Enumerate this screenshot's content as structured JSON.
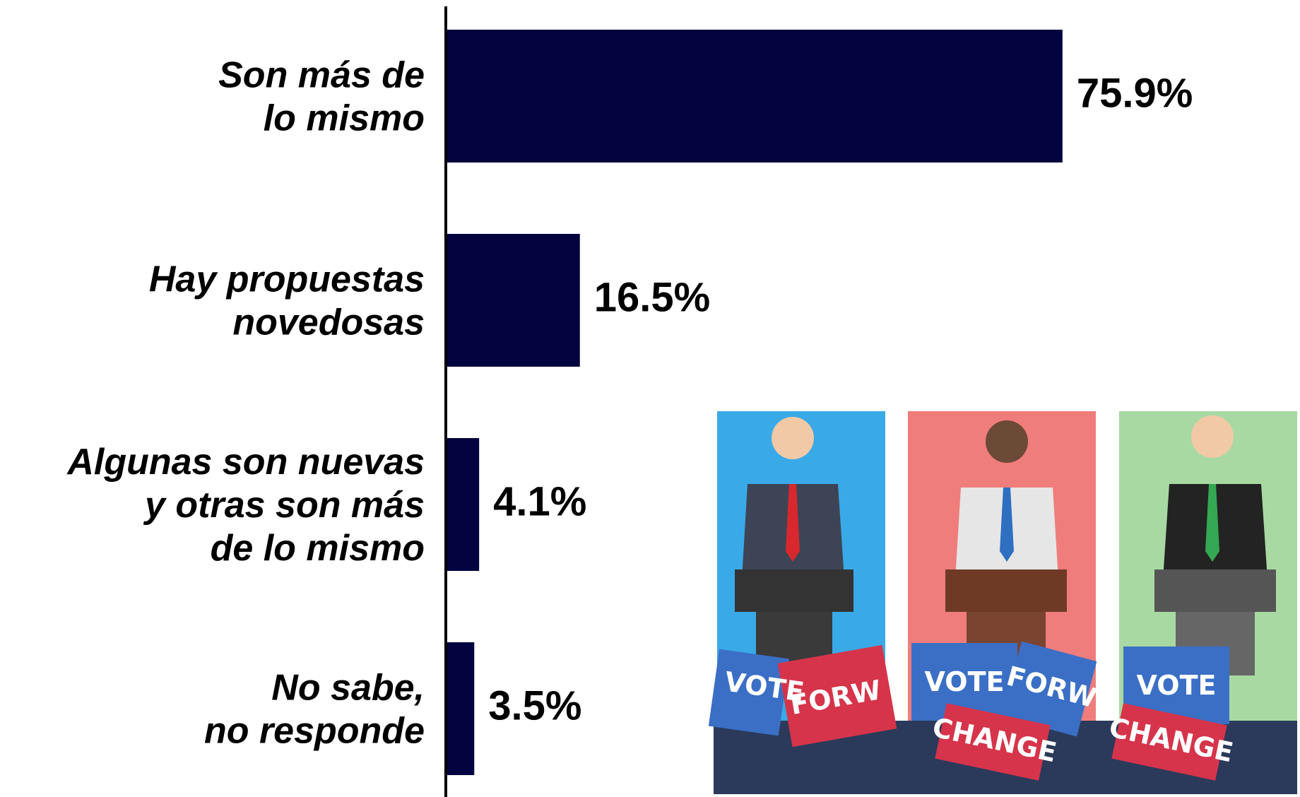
{
  "chart_data": {
    "type": "hbar",
    "categories": [
      "Son más de\nlo mismo",
      "Hay propuestas\nnovedosas",
      "Algunas son nuevas\ny otras son más\nde lo mismo",
      "No sabe,\nno responde"
    ],
    "values": [
      75.9,
      16.5,
      4.1,
      3.5
    ],
    "value_labels": [
      "75.9%",
      "16.5%",
      "4.1%",
      "3.5%"
    ],
    "color": "#03033f",
    "xlim": [
      0,
      100
    ]
  },
  "illustration": {
    "signs": [
      "VOTE",
      "FORW",
      "VOTE",
      "CHANGE",
      "VOTE",
      "FORW",
      "CHANGE"
    ]
  }
}
